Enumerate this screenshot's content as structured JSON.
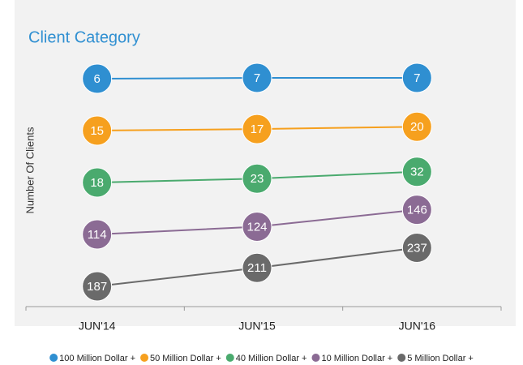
{
  "chart_data": {
    "type": "line",
    "title": "Client Category",
    "ylabel": "Number Of Clients",
    "categories": [
      "JUN'14",
      "JUN'15",
      "JUN'16"
    ],
    "series": [
      {
        "name": "100 Million Dollar +",
        "color": "#2f8fd1",
        "values": [
          6,
          7,
          7
        ]
      },
      {
        "name": "50 Million Dollar +",
        "color": "#f6a01e",
        "values": [
          15,
          17,
          20
        ]
      },
      {
        "name": "40 Million Dollar +",
        "color": "#4aaa6e",
        "values": [
          18,
          23,
          32
        ]
      },
      {
        "name": "10 Million Dollar +",
        "color": "#8b6b94",
        "values": [
          114,
          124,
          146
        ]
      },
      {
        "name": "5 Million Dollar +",
        "color": "#6a6a6a",
        "values": [
          187,
          211,
          237
        ]
      }
    ]
  }
}
